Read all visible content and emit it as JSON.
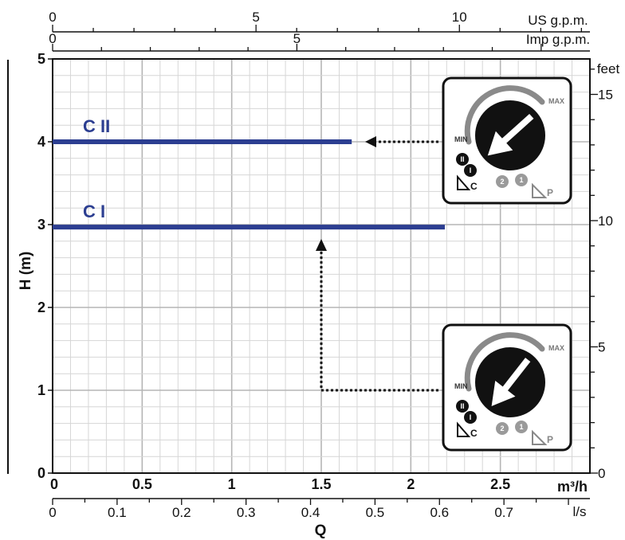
{
  "chart_data": {
    "type": "line",
    "x_axis": {
      "title": "Q",
      "unit": "m³/h",
      "range": [
        0,
        3
      ],
      "ticks": [
        "0",
        "0.5",
        "1",
        "1.5",
        "2",
        "2.5"
      ]
    },
    "x_axis_ls": {
      "unit": "l/s",
      "ticks": [
        "0",
        "0.1",
        "0.2",
        "0.3",
        "0.4",
        "0.5",
        "0.6",
        "0.7"
      ]
    },
    "x_axis_usgpm": {
      "unit": "US g.p.m.",
      "ticks": [
        "0",
        "5",
        "10"
      ]
    },
    "x_axis_impgpm": {
      "unit": "Imp g.p.m.",
      "ticks": [
        "0",
        "5"
      ]
    },
    "y_axis": {
      "title": "H (m)",
      "range": [
        0,
        5
      ],
      "ticks": [
        "0",
        "1",
        "2",
        "3",
        "4",
        "5"
      ]
    },
    "y_axis_feet": {
      "unit": "feet",
      "ticks": [
        "0",
        "5",
        "10",
        "15"
      ]
    },
    "grid": true,
    "series": [
      {
        "name": "C II",
        "x": [
          0,
          1.67
        ],
        "y": [
          4,
          4
        ],
        "color": "#2c3e91"
      },
      {
        "name": "C I",
        "x": [
          0,
          2.19
        ],
        "y": [
          2.97,
          2.97
        ],
        "color": "#2c3e91"
      }
    ],
    "annotations": {
      "knob_labels": {
        "max": "MAX",
        "min": "MIN",
        "speed_c2": "II",
        "speed_c1": "I",
        "speed_p2": "2",
        "speed_p1": "1",
        "mode_c": "C",
        "mode_p": "P"
      }
    }
  }
}
